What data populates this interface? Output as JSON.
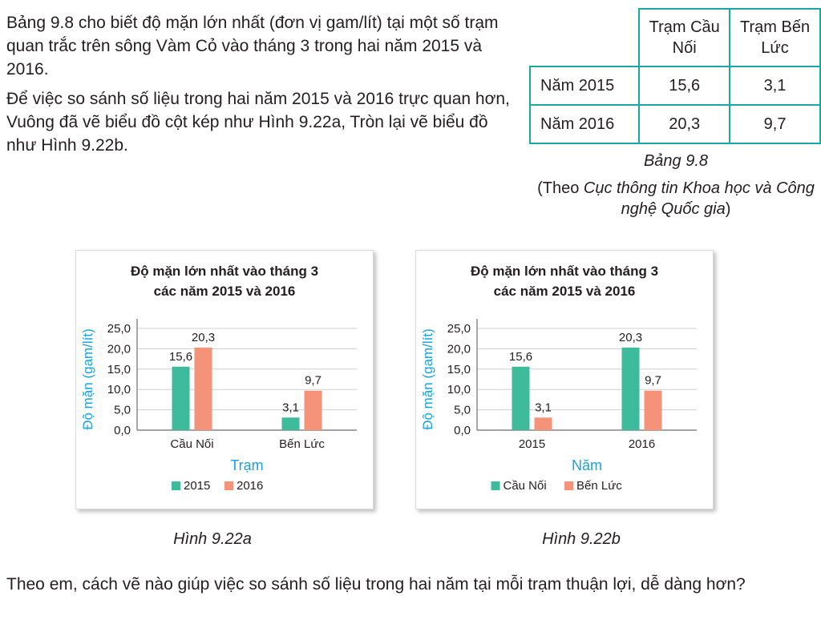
{
  "intro": {
    "p1": "Bảng 9.8 cho biết độ mặn lớn nhất (đơn vị gam/lít) tại một số trạm quan trắc trên sông Vàm Cỏ vào tháng 3 trong hai năm 2015 và 2016.",
    "p2": "Để việc so sánh số liệu trong hai năm 2015 và 2016 trực quan hơn, Vuông đã vẽ biểu đồ cột kép như Hình 9.22a, Tròn lại vẽ biểu đồ như Hình 9.22b."
  },
  "table": {
    "col1": "Trạm Cầu Nối",
    "col2": "Trạm Bến Lức",
    "rows": [
      {
        "label": "Năm 2015",
        "v1": "15,6",
        "v2": "3,1"
      },
      {
        "label": "Năm 2016",
        "v1": "20,3",
        "v2": "9,7"
      }
    ],
    "caption": "Bảng 9.8",
    "source_prefix": "(Theo ",
    "source_italic": "Cục thông tin Khoa học và Công nghệ Quốc gia",
    "source_suffix": ")"
  },
  "colors": {
    "teal": "#3dbb9b",
    "salmon": "#f4937a",
    "axis_blue": "#1aa3d9",
    "border": "#1aa99c"
  },
  "chart_data": [
    {
      "type": "bar",
      "title": "Độ mặn lớn nhất vào tháng 3 các năm 2015 và 2016",
      "title_lines": [
        "Độ mặn lớn nhất vào tháng 3",
        "các năm 2015 và 2016"
      ],
      "xlabel": "Trạm",
      "ylabel": "Độ mặn (gam/lít)",
      "ylim": [
        0,
        25
      ],
      "yticks": [
        "0,0",
        "5,0",
        "10,0",
        "15,0",
        "20,0",
        "25,0"
      ],
      "categories": [
        "Cầu Nối",
        "Bến Lức"
      ],
      "series": [
        {
          "name": "2015",
          "values": [
            15.6,
            3.1
          ],
          "labels": [
            "15,6",
            "3,1"
          ],
          "color": "#3dbb9b"
        },
        {
          "name": "2016",
          "values": [
            20.3,
            9.7
          ],
          "labels": [
            "20,3",
            "9,7"
          ],
          "color": "#f4937a"
        }
      ],
      "grid": true,
      "legend": "bottom",
      "figure_label": "Hình 9.22a"
    },
    {
      "type": "bar",
      "title": "Độ mặn lớn nhất vào tháng 3 các năm 2015 và 2016",
      "title_lines": [
        "Độ mặn lớn nhất vào tháng 3",
        "các năm 2015 và 2016"
      ],
      "xlabel": "Năm",
      "ylabel": "Độ mặn (gam/lít)",
      "ylim": [
        0,
        25
      ],
      "yticks": [
        "0,0",
        "5,0",
        "10,0",
        "15,0",
        "20,0",
        "25,0"
      ],
      "categories": [
        "2015",
        "2016"
      ],
      "series": [
        {
          "name": "Cầu Nối",
          "values": [
            15.6,
            20.3
          ],
          "labels": [
            "15,6",
            "20,3"
          ],
          "color": "#3dbb9b"
        },
        {
          "name": "Bến Lức",
          "values": [
            3.1,
            9.7
          ],
          "labels": [
            "3,1",
            "9,7"
          ],
          "color": "#f4937a"
        }
      ],
      "grid": true,
      "legend": "bottom",
      "figure_label": "Hình 9.22b"
    }
  ],
  "question": "Theo em, cách vẽ nào giúp việc so sánh số liệu trong hai năm tại mỗi trạm thuận lợi, dễ dàng hơn?"
}
